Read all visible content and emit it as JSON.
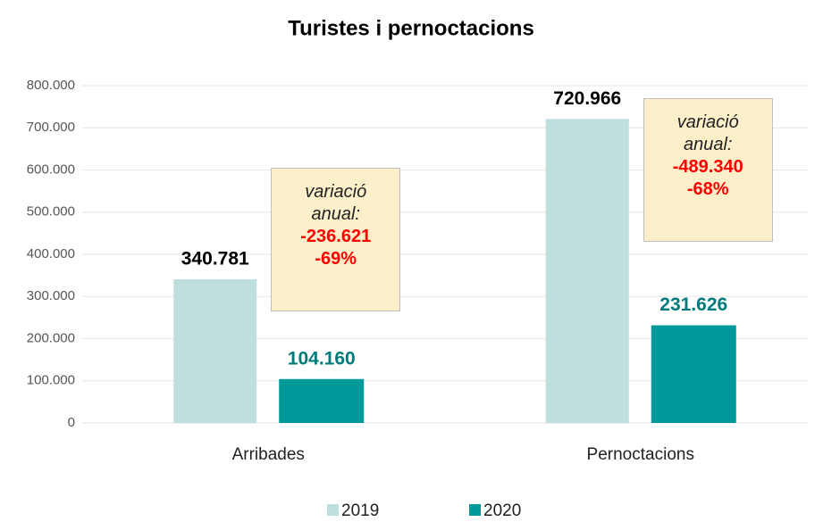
{
  "chart_data": {
    "type": "bar",
    "title": "Turistes i pernoctacions",
    "categories": [
      "Arribades",
      "Pernoctacions"
    ],
    "series": [
      {
        "name": "2019",
        "color": "#bfdfdf",
        "values": [
          340781,
          720966
        ],
        "value_labels": [
          "340.781",
          "720.966"
        ]
      },
      {
        "name": "2020",
        "color": "#009999",
        "values": [
          104160,
          231626
        ],
        "value_labels": [
          "104.160",
          "231.626"
        ]
      }
    ],
    "ylim": [
      0,
      800000
    ],
    "yticks": [
      0,
      {
        "value": 100000,
        "label": "100.000"
      },
      {
        "value": 200000,
        "label": "200.000"
      },
      {
        "value": 300000,
        "label": "300.000"
      },
      {
        "value": 400000,
        "label": "400.000"
      },
      {
        "value": 500000,
        "label": "500.000"
      },
      {
        "value": 600000,
        "label": "600.000"
      },
      {
        "value": 700000,
        "label": "700.000"
      },
      {
        "value": 800000,
        "label": "800.000"
      }
    ],
    "grid": true,
    "legend": "bottom",
    "annotations": [
      {
        "text": "variació anual:",
        "change": "-236.621",
        "percent": "-69%"
      },
      {
        "text": "variació anual:",
        "change": "-489.340",
        "percent": "-68%"
      }
    ]
  }
}
